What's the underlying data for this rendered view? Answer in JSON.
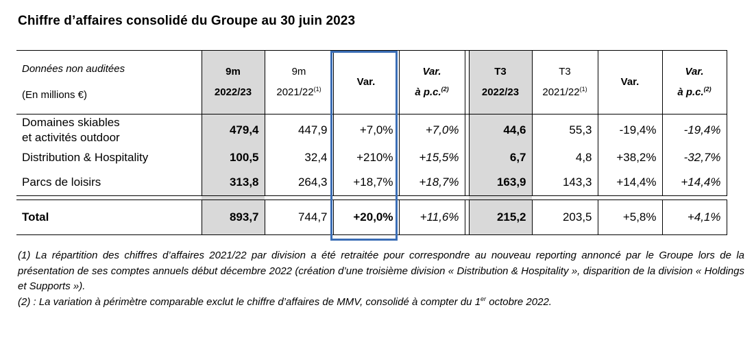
{
  "title": "Chiffre d’affaires consolidé du Groupe au 30 juin 2023",
  "table": {
    "header": {
      "label_line1": "Données non auditées",
      "label_line2": "(En millions €)",
      "columns": [
        {
          "line1": "9m",
          "line2": "2022/23",
          "sup": ""
        },
        {
          "line1": "9m",
          "line2": "2021/22",
          "sup": "(1)"
        },
        {
          "line1": "Var.",
          "line2": "",
          "sup": ""
        },
        {
          "line1": "Var.",
          "line2": "à p.c.",
          "sup": "(2)"
        },
        {
          "line1": "T3",
          "line2": "2022/23",
          "sup": ""
        },
        {
          "line1": "T3",
          "line2": "2021/22",
          "sup": "(1)"
        },
        {
          "line1": "Var.",
          "line2": "",
          "sup": ""
        },
        {
          "line1": "Var.",
          "line2": "à p.c.",
          "sup": "(2)"
        }
      ]
    },
    "rows": [
      {
        "label_line1": "Domaines skiables",
        "label_line2": "et activités outdoor",
        "values": [
          "479,4",
          "447,9",
          "+7,0%",
          "+7,0%",
          "44,6",
          "55,3",
          "-19,4%",
          "-19,4%"
        ]
      },
      {
        "label_line1": "Distribution & Hospitality",
        "label_line2": "",
        "values": [
          "100,5",
          "32,4",
          "+210%",
          "+15,5%",
          "6,7",
          "4,8",
          "+38,2%",
          "-32,7%"
        ]
      },
      {
        "label_line1": "Parcs de loisirs",
        "label_line2": "",
        "values": [
          "313,8",
          "264,3",
          "+18,7%",
          "+18,7%",
          "163,9",
          "143,3",
          "+14,4%",
          "+14,4%"
        ]
      }
    ],
    "total": {
      "label": "Total",
      "values": [
        "893,7",
        "744,7",
        "+20,0%",
        "+11,6%",
        "215,2",
        "203,5",
        "+5,8%",
        "+4,1%"
      ]
    },
    "highlight_color": "#3a6db5",
    "shade_color": "#d9d9d9"
  },
  "footnotes": {
    "note1": "(1) La répartition des chiffres d’affaires 2021/22 par division a été retraitée pour correspondre au nouveau reporting annoncé par le Groupe lors de la présentation de ses comptes annuels début décembre 2022 (création d’une troisième division « Distribution & Hospitality », disparition de la division « Holdings et Supports »).",
    "note2_before": "(2) : La variation à périmètre comparable exclut le chiffre d’affaires de MMV, consolidé à compter du 1",
    "note2_sup": "er",
    "note2_after": " octobre 2022."
  }
}
